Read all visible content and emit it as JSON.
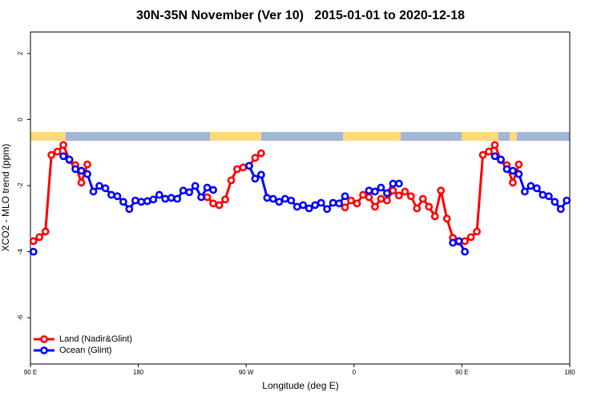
{
  "chart_data": {
    "type": "line",
    "title": "30N-35N November (Ver 10)   2015-01-01 to 2020-12-18",
    "xlabel": "Longitude (deg E)",
    "ylabel": "XCO2 - MLO trend (ppm)",
    "xlim": [
      90,
      540
    ],
    "ylim": [
      -7.4,
      2.65
    ],
    "xticks": [
      {
        "value": 90,
        "label": "90 E"
      },
      180,
      {
        "value": 270,
        "label": "90 W"
      },
      {
        "value": 360,
        "label": "0"
      },
      {
        "value": 450,
        "label": "90 E"
      },
      {
        "value": 540,
        "label": "180"
      }
    ],
    "yticks": [
      -6,
      -4,
      -2,
      0,
      2
    ],
    "grid": false,
    "legend": "bottomleft",
    "x": [
      92.5,
      97.5,
      102.5,
      107.5,
      112.5,
      117.5,
      122.5,
      127.5,
      132.5,
      137.5,
      142.5,
      147.5,
      152.5,
      157.5,
      162.5,
      167.5,
      172.5,
      177.5,
      182.5,
      187.5,
      192.5,
      197.5,
      202.5,
      207.5,
      212.5,
      217.5,
      222.5,
      227.5,
      232.5,
      237.5,
      242.5,
      247.5,
      252.5,
      257.5,
      262.5,
      267.5,
      272.5,
      277.5,
      282.5,
      287.5,
      292.5,
      297.5,
      302.5,
      307.5,
      312.5,
      317.5,
      322.5,
      327.5,
      332.5,
      337.5,
      342.5,
      347.5,
      352.5,
      357.5,
      362.5,
      367.5,
      372.5,
      377.5,
      382.5,
      387.5,
      392.5,
      397.5,
      402.5,
      407.5,
      412.5,
      417.5,
      422.5,
      427.5,
      432.5,
      437.5,
      442.5,
      447.5,
      452.5,
      457.5,
      462.5,
      467.5,
      472.5,
      477.5,
      482.5,
      487.5,
      492.5,
      497.5,
      502.5,
      507.5,
      512.5,
      517.5,
      522.5,
      527.5,
      532.5,
      537.5
    ],
    "series": [
      {
        "name": "Land (Nadir&Glint)",
        "color": "#ff0000",
        "values": [
          -3.68,
          -3.56,
          -3.39,
          -1.07,
          -0.97,
          -0.77,
          -1.23,
          -1.38,
          -1.91,
          -1.36,
          null,
          null,
          null,
          null,
          null,
          null,
          null,
          null,
          null,
          null,
          null,
          null,
          null,
          null,
          null,
          null,
          null,
          null,
          null,
          -2.35,
          -2.54,
          -2.59,
          -2.42,
          -1.84,
          -1.5,
          -1.45,
          -1.4,
          -1.16,
          -1.02,
          null,
          null,
          null,
          null,
          null,
          null,
          null,
          null,
          null,
          null,
          null,
          null,
          null,
          -2.66,
          -2.45,
          -2.54,
          -2.28,
          -2.35,
          -2.64,
          -2.4,
          -2.45,
          -2.15,
          -2.3,
          -2.18,
          -2.32,
          -2.69,
          -2.4,
          -2.64,
          -2.93,
          -2.15,
          -3.0,
          -3.58,
          -3.7,
          -3.68,
          -3.56,
          -3.39,
          -1.07,
          -0.97,
          -0.77,
          -1.23,
          -1.38,
          -1.91,
          -1.36,
          null,
          null,
          null,
          null,
          null,
          null,
          null,
          null
        ]
      },
      {
        "name": "Ocean (Glint)",
        "color": "#0000ff",
        "values": [
          -4.0,
          null,
          null,
          null,
          null,
          -1.11,
          -1.21,
          -1.5,
          -1.55,
          -1.65,
          -2.18,
          -2.01,
          -2.08,
          -2.28,
          -2.32,
          -2.49,
          -2.71,
          -2.45,
          -2.49,
          -2.47,
          -2.42,
          -2.28,
          -2.4,
          -2.37,
          -2.4,
          -2.15,
          -2.2,
          -2.01,
          -2.35,
          -2.06,
          -2.13,
          null,
          null,
          null,
          null,
          null,
          -1.4,
          -1.79,
          -1.67,
          -2.37,
          -2.4,
          -2.49,
          -2.4,
          -2.45,
          -2.64,
          -2.59,
          -2.69,
          -2.59,
          -2.52,
          -2.71,
          -2.52,
          -2.54,
          -2.32,
          null,
          null,
          null,
          -2.15,
          -2.18,
          -2.06,
          -2.23,
          -1.94,
          -1.94,
          null,
          null,
          null,
          null,
          null,
          null,
          null,
          null,
          -3.73,
          -3.68,
          -4.0,
          null,
          null,
          null,
          null,
          -1.11,
          -1.21,
          -1.5,
          -1.55,
          -1.65,
          -2.18,
          -2.01,
          -2.08,
          -2.28,
          -2.32,
          -2.49,
          -2.71,
          -2.45
        ]
      }
    ]
  }
}
